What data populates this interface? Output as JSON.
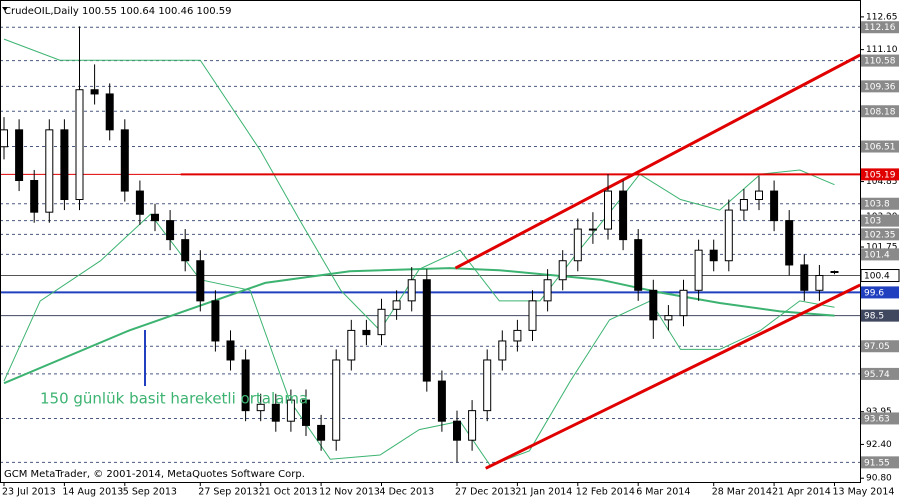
{
  "chart_data": {
    "type": "candlestick",
    "title": "CrudeOIL,Daily  100.55 100.64 100.46 100.59",
    "footer": "GCM MetaTrader, © 2001-2014, MetaQuotes Software Corp.",
    "annotation": "150 günlük basit hareketli ortalama",
    "categories": [
      "23 Jul 2013",
      null,
      null,
      null,
      "14 Aug 2013",
      null,
      null,
      null,
      "5 Sep 2013",
      null,
      null,
      null,
      null,
      "27 Sep 2013",
      null,
      null,
      null,
      "21 Oct 2013",
      null,
      null,
      null,
      "12 Nov 2013",
      null,
      null,
      null,
      "4 Dec 2013",
      null,
      null,
      null,
      null,
      "27 Dec 2013",
      null,
      null,
      null,
      "21 Jan 2014",
      null,
      null,
      null,
      "12 Feb 2014",
      null,
      null,
      null,
      "6 Mar 2014",
      null,
      null,
      null,
      null,
      "28 Mar 2014",
      null,
      null,
      null,
      "21 Apr 2014",
      null,
      null,
      null,
      "13 May 2014"
    ],
    "open": [
      106.5,
      107.3,
      104.9,
      103.4,
      107.3,
      104.0,
      109.2,
      109.0,
      107.3,
      104.4,
      103.3,
      103.0,
      102.1,
      101.1,
      99.2,
      97.3,
      96.4,
      94.0,
      94.3,
      93.5,
      94.5,
      93.3,
      92.6,
      96.4,
      97.8,
      97.6,
      98.8,
      99.2,
      100.2,
      95.4,
      93.5,
      92.6,
      94.0,
      96.4,
      97.3,
      97.8,
      99.2,
      100.2,
      101.1,
      102.6,
      102.6,
      104.4,
      102.1,
      99.7,
      98.3,
      98.5,
      99.7,
      101.6,
      101.1,
      103.5,
      104.0,
      104.4,
      103.0,
      100.9,
      99.7,
      100.55
    ],
    "high": [
      107.9,
      107.8,
      105.4,
      107.8,
      107.8,
      112.2,
      110.4,
      109.5,
      107.8,
      104.9,
      103.8,
      103.5,
      102.6,
      101.6,
      99.7,
      97.8,
      96.9,
      94.8,
      94.8,
      95.0,
      95.0,
      93.8,
      96.9,
      98.3,
      98.3,
      99.3,
      99.7,
      100.8,
      100.7,
      95.9,
      94.0,
      94.5,
      96.9,
      97.8,
      98.3,
      99.7,
      100.7,
      101.6,
      103.1,
      103.4,
      105.2,
      104.9,
      102.6,
      100.2,
      99.0,
      100.2,
      102.1,
      102.1,
      104.0,
      104.5,
      105.1,
      104.9,
      103.5,
      101.4,
      100.9,
      100.64
    ],
    "low": [
      105.9,
      104.4,
      102.9,
      102.9,
      103.5,
      103.5,
      108.5,
      106.8,
      103.9,
      102.8,
      102.5,
      101.6,
      100.6,
      98.7,
      96.8,
      95.9,
      93.5,
      93.5,
      93.0,
      93.0,
      92.8,
      92.1,
      92.1,
      95.9,
      97.1,
      97.1,
      98.3,
      98.7,
      94.9,
      93.0,
      91.55,
      92.1,
      93.5,
      95.9,
      96.8,
      97.3,
      98.7,
      99.7,
      100.6,
      101.9,
      102.1,
      101.6,
      99.2,
      97.4,
      97.8,
      98.0,
      99.2,
      100.6,
      100.6,
      103.0,
      103.5,
      102.5,
      100.4,
      99.2,
      99.2,
      100.46
    ],
    "close": [
      107.3,
      104.9,
      103.4,
      107.3,
      104.0,
      109.2,
      109.0,
      107.3,
      104.4,
      103.3,
      103.0,
      102.1,
      101.1,
      99.2,
      97.3,
      96.4,
      94.0,
      94.3,
      93.5,
      94.5,
      93.3,
      92.6,
      96.4,
      97.8,
      97.6,
      98.8,
      99.2,
      100.2,
      95.4,
      93.5,
      92.6,
      94.0,
      96.4,
      97.3,
      97.8,
      99.2,
      100.2,
      101.1,
      102.6,
      102.6,
      104.4,
      102.1,
      99.7,
      98.3,
      98.5,
      99.7,
      101.6,
      101.1,
      103.5,
      104.0,
      104.4,
      103.0,
      100.9,
      99.7,
      100.4,
      100.59
    ],
    "overlays": [
      {
        "color": "#3cb371",
        "width": 2,
        "x": [
          0,
          8.3,
          17.3,
          22.9,
          29.5,
          32.8,
          39.5,
          43.4,
          47.4,
          51.4,
          55
        ],
        "values": [
          95.3,
          97.8,
          100.05,
          100.6,
          100.75,
          100.65,
          100.2,
          99.6,
          99.1,
          98.7,
          98.5
        ]
      },
      {
        "color": "#3cb371",
        "width": 1,
        "x": [
          0,
          3.7,
          13,
          17,
          19.6,
          22.3,
          24.9,
          27.5,
          30.2,
          32.8,
          35.5,
          38.1,
          40.8,
          42.1,
          44.8,
          47.4,
          50.1,
          52.7,
          55
        ],
        "values": [
          111.6,
          110.6,
          110.6,
          106.3,
          103,
          99.7,
          97.8,
          100.7,
          101.6,
          99.2,
          99.2,
          101.6,
          104,
          105.2,
          104,
          103.5,
          105.2,
          105.4,
          104.7
        ]
      },
      {
        "color": "#3cb371",
        "width": 1,
        "x": [
          0,
          2.4,
          6.4,
          9.7,
          13,
          16.3,
          18.9,
          21.6,
          24.9,
          27.5,
          30.2,
          32.2,
          34.8,
          37.5,
          40.1,
          42.8,
          44.8,
          47.4,
          50.1,
          52.7,
          55
        ],
        "values": [
          95.4,
          99.2,
          101.1,
          103.3,
          100.2,
          99.7,
          94.5,
          91.7,
          91.9,
          93.1,
          93.5,
          91.4,
          92.1,
          95.4,
          98.3,
          99.2,
          96.9,
          96.9,
          97.8,
          99.2,
          98.9
        ]
      },
      {
        "color": "#e00000",
        "width": 3,
        "x": [
          31.9,
          56.7
        ],
        "values": [
          91.27,
          99.95
        ]
      },
      {
        "color": "#e00000",
        "width": 3,
        "x": [
          29.9,
          56.7
        ],
        "values": [
          100.75,
          110.85
        ]
      },
      {
        "color": "#e00000",
        "width": 2,
        "x": [
          11.7,
          56.7
        ],
        "values": [
          105.19,
          105.19
        ]
      }
    ],
    "levels": [
      {
        "value": 112.16,
        "color": "#8a8a8a",
        "line": "#4a5a80",
        "dash": true
      },
      {
        "value": 110.58,
        "color": "#8a8a8a",
        "line": "#4a5a80",
        "dash": true
      },
      {
        "value": 109.36,
        "color": "#8a8a8a",
        "line": "#4a5a80",
        "dash": true
      },
      {
        "value": 108.18,
        "color": "#8a8a8a",
        "line": "#4a5a80",
        "dash": true
      },
      {
        "value": 106.51,
        "color": "#8a8a8a",
        "line": "#4a5a80",
        "dash": true
      },
      {
        "value": 105.19,
        "color": "#e00000",
        "line": "#e00000",
        "dash": false
      },
      {
        "value": 103.8,
        "color": "#8a8a8a",
        "line": "#4a5a80",
        "dash": true
      },
      {
        "value": 103.0,
        "color": "#8a8a8a",
        "line": "#4a5a80",
        "dash": true
      },
      {
        "value": 102.35,
        "color": "#8a8a8a",
        "line": "#4a5a80",
        "dash": true
      },
      {
        "value": 101.4,
        "color": "#8a8a8a",
        "line": "#4a5a80",
        "dash": true
      },
      {
        "value": 100.4,
        "color": "#ffffff",
        "line": "#555555",
        "dash": false
      },
      {
        "value": 99.6,
        "color": "#2040c0",
        "line": "#2040c0",
        "dash": false
      },
      {
        "value": 98.5,
        "color": "#404860",
        "line": "#404860",
        "dash": false
      },
      {
        "value": 97.05,
        "color": "#8a8a8a",
        "line": "#4a5a80",
        "dash": true
      },
      {
        "value": 95.74,
        "color": "#8a8a8a",
        "line": "#4a5a80",
        "dash": true
      },
      {
        "value": 93.63,
        "color": "#8a8a8a",
        "line": "#4a5a80",
        "dash": true
      },
      {
        "value": 91.55,
        "color": "#8a8a8a",
        "line": "#4a5a80",
        "dash": true
      }
    ],
    "ylim": [
      90.62,
      113.45
    ],
    "yticks": [
      {
        "value": 112.65,
        "label": "112.65"
      },
      {
        "value": 111.1,
        "label": "111.10"
      },
      {
        "value": 104.85,
        "label": "104.85"
      },
      {
        "value": 103.2,
        "label": "103.20"
      },
      101.75,
      {
        "value": 100.2,
        "label": "100.20"
      },
      93.95,
      {
        "value": 92.4,
        "label": "92.40"
      },
      {
        "value": 90.8,
        "label": "90.80"
      }
    ]
  }
}
